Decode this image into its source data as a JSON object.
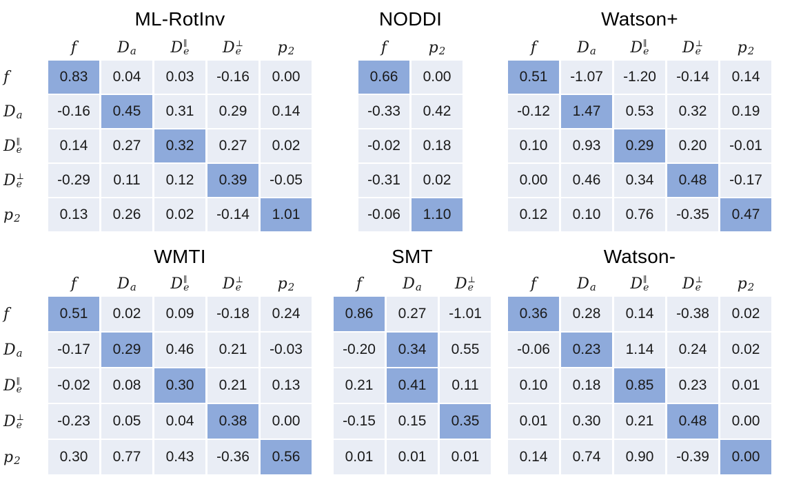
{
  "colors": {
    "highlight": "#8EAADB",
    "cell": "#E9EDF5",
    "text": "#1a1a1a",
    "background": "#ffffff"
  },
  "chart_data": [
    {
      "type": "table",
      "title": "ML-RotInv",
      "columns": [
        {
          "base": "f"
        },
        {
          "base": "D",
          "sub": "a"
        },
        {
          "base": "D",
          "sub": "e",
          "sup": "∥"
        },
        {
          "base": "D",
          "sub": "e",
          "sup": "⊥"
        },
        {
          "base": "p",
          "sub": "2"
        }
      ],
      "row_labels": [
        {
          "base": "f"
        },
        {
          "base": "D",
          "sub": "a"
        },
        {
          "base": "D",
          "sub": "e",
          "sup": "∥"
        },
        {
          "base": "D",
          "sub": "e",
          "sup": "⊥"
        },
        {
          "base": "p",
          "sub": "2"
        }
      ],
      "rows": [
        [
          "0.83",
          "0.04",
          "0.03",
          "-0.16",
          "0.00"
        ],
        [
          "-0.16",
          "0.45",
          "0.31",
          "0.29",
          "0.14"
        ],
        [
          "0.14",
          "0.27",
          "0.32",
          "0.27",
          "0.02"
        ],
        [
          "-0.29",
          "0.11",
          "0.12",
          "0.39",
          "-0.05"
        ],
        [
          "0.13",
          "0.26",
          "0.02",
          "-0.14",
          "1.01"
        ]
      ],
      "highlights": [
        [
          0,
          0
        ],
        [
          1,
          1
        ],
        [
          2,
          2
        ],
        [
          3,
          3
        ],
        [
          4,
          4
        ]
      ]
    },
    {
      "type": "table",
      "title": "NODDI",
      "columns": [
        {
          "base": "f"
        },
        {
          "base": "p",
          "sub": "2"
        }
      ],
      "rows": [
        [
          "0.66",
          "0.00"
        ],
        [
          "-0.33",
          "0.42"
        ],
        [
          "-0.02",
          "0.18"
        ],
        [
          "-0.31",
          "0.02"
        ],
        [
          "-0.06",
          "1.10"
        ]
      ],
      "highlights": [
        [
          0,
          0
        ],
        [
          4,
          1
        ]
      ]
    },
    {
      "type": "table",
      "title": "Watson+",
      "columns": [
        {
          "base": "f"
        },
        {
          "base": "D",
          "sub": "a"
        },
        {
          "base": "D",
          "sub": "e",
          "sup": "∥"
        },
        {
          "base": "D",
          "sub": "e",
          "sup": "⊥"
        },
        {
          "base": "p",
          "sub": "2"
        }
      ],
      "rows": [
        [
          "0.51",
          "-1.07",
          "-1.20",
          "-0.14",
          "0.14"
        ],
        [
          "-0.12",
          "1.47",
          "0.53",
          "0.32",
          "0.19"
        ],
        [
          "0.10",
          "0.93",
          "0.29",
          "0.20",
          "-0.01"
        ],
        [
          "0.00",
          "0.46",
          "0.34",
          "0.48",
          "-0.17"
        ],
        [
          "0.12",
          "0.10",
          "0.76",
          "-0.35",
          "0.47"
        ]
      ],
      "highlights": [
        [
          0,
          0
        ],
        [
          1,
          1
        ],
        [
          2,
          2
        ],
        [
          3,
          3
        ],
        [
          4,
          4
        ]
      ]
    },
    {
      "type": "table",
      "title": "WMTI",
      "columns": [
        {
          "base": "f"
        },
        {
          "base": "D",
          "sub": "a"
        },
        {
          "base": "D",
          "sub": "e",
          "sup": "∥"
        },
        {
          "base": "D",
          "sub": "e",
          "sup": "⊥"
        },
        {
          "base": "p",
          "sub": "2"
        }
      ],
      "row_labels": [
        {
          "base": "f"
        },
        {
          "base": "D",
          "sub": "a"
        },
        {
          "base": "D",
          "sub": "e",
          "sup": "∥"
        },
        {
          "base": "D",
          "sub": "e",
          "sup": "⊥"
        },
        {
          "base": "p",
          "sub": "2"
        }
      ],
      "rows": [
        [
          "0.51",
          "0.02",
          "0.09",
          "-0.18",
          "0.24"
        ],
        [
          "-0.17",
          "0.29",
          "0.46",
          "0.21",
          "-0.03"
        ],
        [
          "-0.02",
          "0.08",
          "0.30",
          "0.21",
          "0.13"
        ],
        [
          "-0.23",
          "0.05",
          "0.04",
          "0.38",
          "0.00"
        ],
        [
          "0.30",
          "0.77",
          "0.43",
          "-0.36",
          "0.56"
        ]
      ],
      "highlights": [
        [
          0,
          0
        ],
        [
          1,
          1
        ],
        [
          2,
          2
        ],
        [
          3,
          3
        ],
        [
          4,
          4
        ]
      ]
    },
    {
      "type": "table",
      "title": "SMT",
      "columns": [
        {
          "base": "f"
        },
        {
          "base": "D",
          "sub": "a"
        },
        {
          "base": "D",
          "sub": "e",
          "sup": "⊥"
        }
      ],
      "rows": [
        [
          "0.86",
          "0.27",
          "-1.01"
        ],
        [
          "-0.20",
          "0.34",
          "0.55"
        ],
        [
          "0.21",
          "0.41",
          "0.11"
        ],
        [
          "-0.15",
          "0.15",
          "0.35"
        ],
        [
          "0.01",
          "0.01",
          "0.01"
        ]
      ],
      "highlights": [
        [
          0,
          0
        ],
        [
          1,
          1
        ],
        [
          2,
          1
        ],
        [
          3,
          2
        ]
      ]
    },
    {
      "type": "table",
      "title": "Watson-",
      "columns": [
        {
          "base": "f"
        },
        {
          "base": "D",
          "sub": "a"
        },
        {
          "base": "D",
          "sub": "e",
          "sup": "∥"
        },
        {
          "base": "D",
          "sub": "e",
          "sup": "⊥"
        },
        {
          "base": "p",
          "sub": "2"
        }
      ],
      "rows": [
        [
          "0.36",
          "0.28",
          "0.14",
          "-0.38",
          "0.02"
        ],
        [
          "-0.06",
          "0.23",
          "1.14",
          "0.24",
          "0.02"
        ],
        [
          "0.10",
          "0.18",
          "0.85",
          "0.23",
          "0.01"
        ],
        [
          "0.01",
          "0.30",
          "0.21",
          "0.48",
          "0.00"
        ],
        [
          "0.14",
          "0.74",
          "0.90",
          "-0.39",
          "0.00"
        ]
      ],
      "highlights": [
        [
          0,
          0
        ],
        [
          1,
          1
        ],
        [
          2,
          2
        ],
        [
          3,
          3
        ],
        [
          4,
          4
        ]
      ]
    }
  ]
}
